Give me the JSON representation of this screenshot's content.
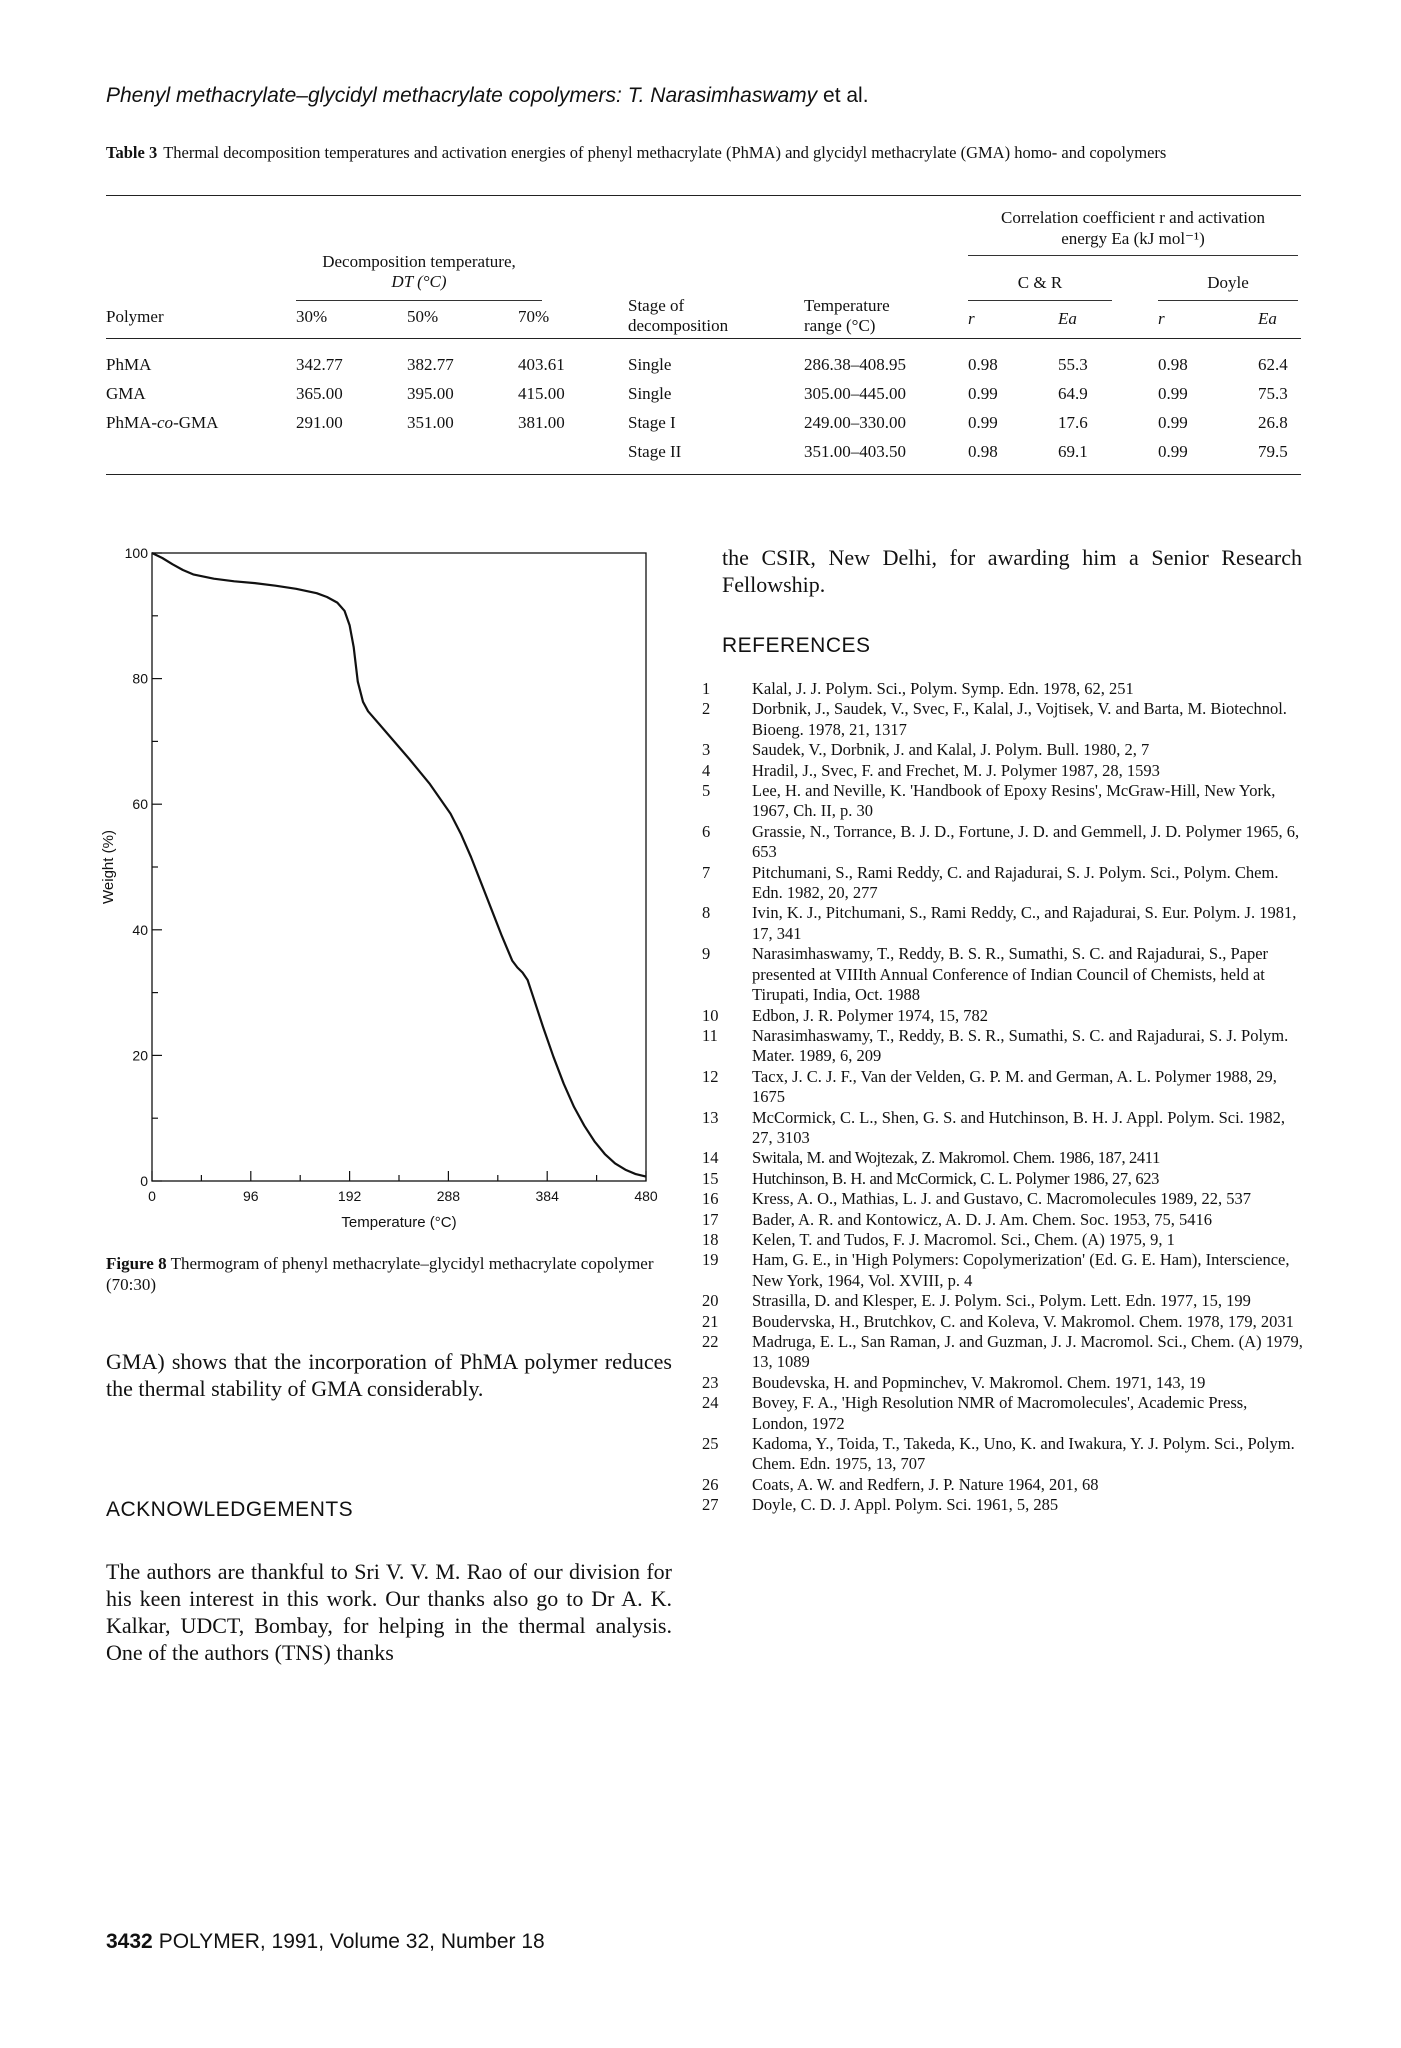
{
  "running_head": {
    "title": "Phenyl methacrylate–glycidyl methacrylate copolymers: T. Narasimhaswamy",
    "etal": "et al."
  },
  "table": {
    "label": "Table 3",
    "caption": "Thermal decomposition temperatures and activation energies of phenyl methacrylate (PhMA) and glycidyl methacrylate (GMA) homo- and copolymers",
    "headers": {
      "polymer": "Polymer",
      "decomp_line1": "Decomposition temperature,",
      "decomp_line2": "DT (°C)",
      "p30": "30%",
      "p50": "50%",
      "p70": "70%",
      "stage_line1": "Stage of",
      "stage_line2": "decomposition",
      "range_line1": "Temperature",
      "range_line2": "range (°C)",
      "corr_line1": "Correlation coefficient r and activation",
      "corr_line2": "energy Ea (kJ mol⁻¹)",
      "cr": "C & R",
      "doyle": "Doyle",
      "r": "r",
      "ea": "Ea"
    },
    "rows": [
      {
        "polymer": "PhMA",
        "t30": "342.77",
        "t50": "382.77",
        "t70": "403.61",
        "stage": "Single",
        "range": "286.38–408.95",
        "cr_r": "0.98",
        "cr_ea": "55.3",
        "d_r": "0.98",
        "d_ea": "62.4"
      },
      {
        "polymer": "GMA",
        "t30": "365.00",
        "t50": "395.00",
        "t70": "415.00",
        "stage": "Single",
        "range": "305.00–445.00",
        "cr_r": "0.99",
        "cr_ea": "64.9",
        "d_r": "0.99",
        "d_ea": "75.3"
      },
      {
        "polymer": "PhMA-co-GMA",
        "t30": "291.00",
        "t50": "351.00",
        "t70": "381.00",
        "stage": "Stage I",
        "range": "249.00–330.00",
        "cr_r": "0.99",
        "cr_ea": "17.6",
        "d_r": "0.99",
        "d_ea": "26.8"
      },
      {
        "polymer": "",
        "t30": "",
        "t50": "",
        "t70": "",
        "stage": "Stage II",
        "range": "351.00–403.50",
        "cr_r": "0.98",
        "cr_ea": "69.1",
        "d_r": "0.99",
        "d_ea": "79.5"
      }
    ]
  },
  "chart_data": {
    "type": "line",
    "title": "",
    "xlabel": "Temperature (°C)",
    "ylabel": "Weight (%)",
    "xlim": [
      0,
      480
    ],
    "ylim": [
      0,
      100
    ],
    "x_ticks": [
      0,
      96,
      192,
      288,
      384,
      480
    ],
    "y_ticks": [
      0,
      20,
      40,
      60,
      80,
      100
    ],
    "grid": false,
    "series": [
      {
        "x": [
          0,
          10,
          20,
          30,
          40,
          60,
          80,
          100,
          120,
          140,
          160,
          170,
          180,
          187,
          192,
          196,
          200,
          205,
          210,
          230,
          250,
          270,
          290,
          300,
          310,
          320,
          330,
          340,
          350,
          355,
          360,
          365,
          370,
          380,
          390,
          400,
          410,
          420,
          430,
          440,
          450,
          460,
          470,
          480
        ],
        "y": [
          100,
          99.2,
          98.2,
          97.3,
          96.6,
          95.9,
          95.5,
          95.2,
          94.8,
          94.3,
          93.6,
          93.0,
          92.1,
          90.8,
          88.5,
          85.0,
          79.5,
          76.3,
          74.8,
          71.0,
          67.2,
          63.2,
          58.5,
          55.3,
          51.6,
          47.4,
          43.2,
          39.0,
          35.1,
          34.0,
          33.2,
          32.0,
          29.5,
          24.5,
          19.8,
          15.5,
          11.8,
          8.8,
          6.3,
          4.3,
          2.8,
          1.8,
          1.1,
          0.7
        ]
      }
    ]
  },
  "figure": {
    "label": "Figure 8",
    "caption": "Thermogram of phenyl methacrylate–glycidyl methacrylate copolymer (70:30)"
  },
  "left_text": {
    "para1": "GMA) shows that the incorporation of PhMA polymer reduces the thermal stability of GMA considerably.",
    "ack_heading": "ACKNOWLEDGEMENTS",
    "para2": "The authors are thankful to Sri V. V. M. Rao of our division for his keen interest in this work. Our thanks also go to Dr A. K. Kalkar, UDCT, Bombay, for helping in the thermal analysis. One of the authors (TNS) thanks"
  },
  "right_text": {
    "para": "the CSIR, New Delhi, for awarding him a Senior Research Fellowship.",
    "ref_heading": "REFERENCES"
  },
  "references": [
    {
      "n": "1",
      "text": "Kalal, J. J. Polym. Sci., Polym. Symp. Edn. 1978, 62, 251"
    },
    {
      "n": "2",
      "text": "Dorbnik, J., Saudek, V., Svec, F., Kalal, J., Vojtisek, V. and Barta, M. Biotechnol. Bioeng. 1978, 21, 1317"
    },
    {
      "n": "3",
      "text": "Saudek, V., Dorbnik, J. and Kalal, J. Polym. Bull. 1980, 2, 7"
    },
    {
      "n": "4",
      "text": "Hradil, J., Svec, F. and Frechet, M. J. Polymer 1987, 28, 1593"
    },
    {
      "n": "5",
      "text": "Lee, H. and Neville, K. 'Handbook of Epoxy Resins', McGraw-Hill, New York, 1967, Ch. II, p. 30"
    },
    {
      "n": "6",
      "text": "Grassie, N., Torrance, B. J. D., Fortune, J. D. and Gemmell, J. D. Polymer 1965, 6, 653"
    },
    {
      "n": "7",
      "text": "Pitchumani, S., Rami Reddy, C. and Rajadurai, S. J. Polym. Sci., Polym. Chem. Edn. 1982, 20, 277"
    },
    {
      "n": "8",
      "text": "Ivin, K. J., Pitchumani, S., Rami Reddy, C., and Rajadurai, S. Eur. Polym. J. 1981, 17, 341"
    },
    {
      "n": "9",
      "text": "Narasimhaswamy, T., Reddy, B. S. R., Sumathi, S. C. and Rajadurai, S., Paper presented at VIIIth Annual Conference of Indian Council of Chemists, held at Tirupati, India, Oct. 1988"
    },
    {
      "n": "10",
      "text": "Edbon, J. R. Polymer 1974, 15, 782"
    },
    {
      "n": "11",
      "text": "Narasimhaswamy, T., Reddy, B. S. R., Sumathi, S. C. and Rajadurai, S. J. Polym. Mater. 1989, 6, 209"
    },
    {
      "n": "12",
      "text": "Tacx, J. C. J. F., Van der Velden, G. P. M. and German, A. L. Polymer 1988, 29, 1675"
    },
    {
      "n": "13",
      "text": "McCormick, C. L., Shen, G. S. and Hutchinson, B. H. J. Appl. Polym. Sci. 1982, 27, 3103"
    },
    {
      "n": "14",
      "text": "Switala, M. and Wojtezak, Z. Makromol. Chem. 1986, 187, 2411"
    },
    {
      "n": "15",
      "text": "Hutchinson, B. H. and McCormick, C. L. Polymer 1986, 27, 623"
    },
    {
      "n": "16",
      "text": "Kress, A. O., Mathias, L. J. and Gustavo, C. Macromolecules 1989, 22, 537"
    },
    {
      "n": "17",
      "text": "Bader, A. R. and Kontowicz, A. D. J. Am. Chem. Soc. 1953, 75, 5416"
    },
    {
      "n": "18",
      "text": "Kelen, T. and Tudos, F. J. Macromol. Sci., Chem. (A) 1975, 9, 1"
    },
    {
      "n": "19",
      "text": "Ham, G. E., in 'High Polymers: Copolymerization' (Ed. G. E. Ham), Interscience, New York, 1964, Vol. XVIII, p. 4"
    },
    {
      "n": "20",
      "text": "Strasilla, D. and Klesper, E. J. Polym. Sci., Polym. Lett. Edn. 1977, 15, 199"
    },
    {
      "n": "21",
      "text": "Boudervska, H., Brutchkov, C. and Koleva, V. Makromol. Chem. 1978, 179, 2031"
    },
    {
      "n": "22",
      "text": "Madruga, E. L., San Raman, J. and Guzman, J. J. Macromol. Sci., Chem. (A) 1979, 13, 1089"
    },
    {
      "n": "23",
      "text": "Boudevska, H. and Popminchev, V. Makromol. Chem. 1971, 143, 19"
    },
    {
      "n": "24",
      "text": "Bovey, F. A., 'High Resolution NMR of Macromolecules', Academic Press, London, 1972"
    },
    {
      "n": "25",
      "text": "Kadoma, Y., Toida, T., Takeda, K., Uno, K. and Iwakura, Y. J. Polym. Sci., Polym. Chem. Edn. 1975, 13, 707"
    },
    {
      "n": "26",
      "text": "Coats, A. W. and Redfern, J. P. Nature 1964, 201, 68"
    },
    {
      "n": "27",
      "text": "Doyle, C. D. J. Appl. Polym. Sci. 1961, 5, 285"
    }
  ],
  "footer": {
    "page": "3432",
    "journal": "POLYMER, 1991, Volume 32, Number 18"
  }
}
